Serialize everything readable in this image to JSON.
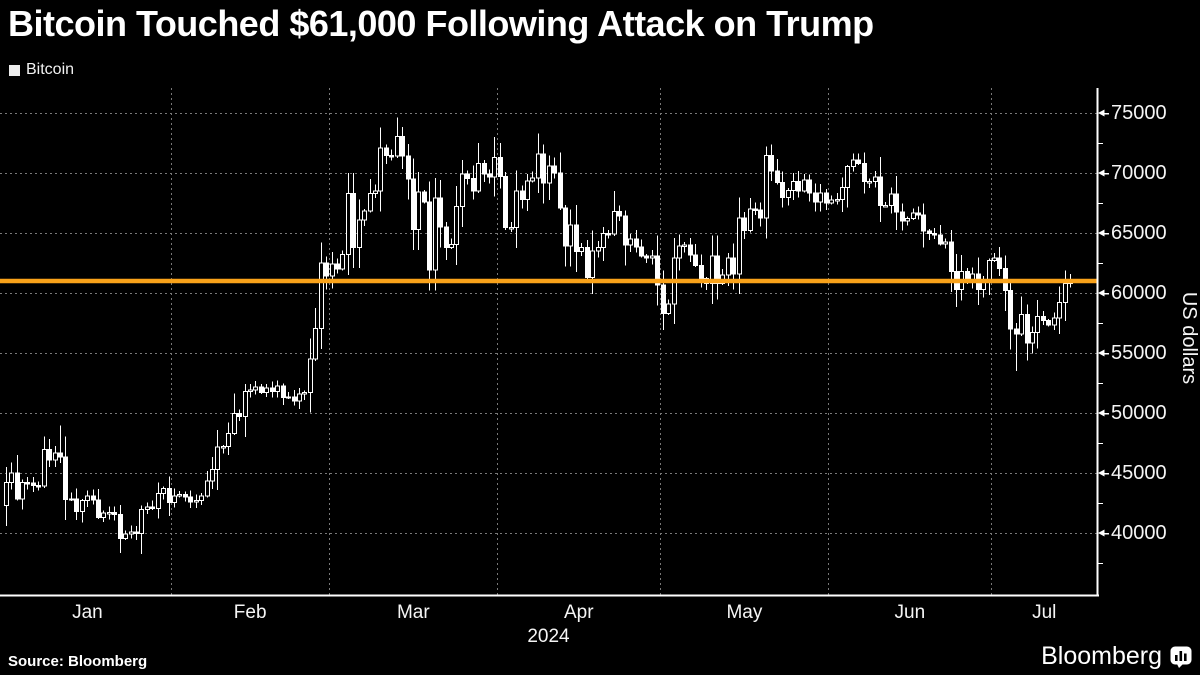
{
  "title": "Bitcoin Touched $61,000 Following Attack on Trump",
  "legend": {
    "label": "Bitcoin",
    "swatch_color": "#ececec"
  },
  "source": {
    "text": "Source: Bloomberg"
  },
  "branding": {
    "wordmark": "Bloomberg",
    "icon": "bar-chart-logo-icon"
  },
  "colors": {
    "background": "#000000",
    "text": "#ffffff",
    "grid": "#787878",
    "axis": "#ffffff",
    "candle": "#ffffff",
    "reference_line": "#f9a21a"
  },
  "chart_data": {
    "type": "candlestick",
    "title": "Bitcoin Touched $61,000 Following Attack on Trump",
    "ylabel": "US dollars",
    "y_axis": {
      "side": "right",
      "tick_values": [
        40000,
        45000,
        50000,
        55000,
        60000,
        65000,
        70000,
        75000
      ],
      "minor_tick_values": [
        37500,
        42500,
        47500,
        52500,
        57500,
        62500,
        67500,
        72500
      ],
      "range_approx": [
        34800,
        77100
      ]
    },
    "x_axis": {
      "year_label": "2024",
      "months": [
        {
          "label": "Jan",
          "days": 31
        },
        {
          "label": "Feb",
          "days": 29
        },
        {
          "label": "Mar",
          "days": 31
        },
        {
          "label": "Apr",
          "days": 30
        },
        {
          "label": "May",
          "days": 31
        },
        {
          "label": "Jun",
          "days": 30
        },
        {
          "label": "Jul",
          "days": 15
        }
      ]
    },
    "reference_line": {
      "value": 61000,
      "color": "#f9a21a"
    },
    "grid": {
      "style": "dashed",
      "horizontal": "at each major y tick",
      "vertical": "at month starts"
    },
    "series": [
      {
        "name": "Bitcoin",
        "unit": "USD",
        "frequency": "daily",
        "start_date": "2024-01-01",
        "end_date": "2024-07-15",
        "first_open": 42300,
        "closes": [
          44200,
          45000,
          42850,
          44200,
          44150,
          43950,
          43900,
          46950,
          46100,
          46650,
          46350,
          42800,
          42850,
          41800,
          42700,
          43100,
          42750,
          41300,
          41650,
          41700,
          41550,
          39550,
          39900,
          40100,
          39950,
          41950,
          42150,
          42050,
          43300,
          43700,
          42550,
          43100,
          43200,
          43000,
          42600,
          42700,
          43100,
          44350,
          45300,
          47150,
          47200,
          48300,
          49950,
          49700,
          51800,
          51900,
          52150,
          51700,
          52100,
          51800,
          52250,
          51300,
          51350,
          51000,
          51600,
          51700,
          54500,
          57050,
          62500,
          61400,
          62400,
          62000,
          63200,
          68300,
          63800,
          66100,
          66850,
          68300,
          68500,
          72100,
          71450,
          71400,
          73050,
          71400,
          69500,
          65300,
          68400,
          67600,
          61900,
          67900,
          65500,
          63800,
          64050,
          67200,
          69900,
          69550,
          68500,
          70800,
          69900,
          69650,
          71300,
          69700,
          65450,
          65450,
          68500,
          67800,
          69350,
          69600,
          71600,
          69150,
          70600,
          70000,
          67100,
          63900,
          65650,
          63450,
          63800,
          61300,
          63500,
          63800,
          64950,
          64900,
          66800,
          66400,
          64000,
          64500,
          63850,
          63100,
          62900,
          63100,
          60650,
          58300,
          59100,
          62900,
          63900,
          64000,
          63150,
          62300,
          61200,
          60800,
          63100,
          60800,
          61500,
          62900,
          61600,
          66250,
          65200,
          67000,
          66900,
          66250,
          71450,
          70150,
          69200,
          67950,
          68550,
          69300,
          68500,
          69400,
          68350,
          67600,
          68350,
          67500,
          67750,
          67800,
          68800,
          70550,
          71100,
          70800,
          69300,
          69300,
          69650,
          67300,
          67300,
          68250,
          66750,
          66000,
          66200,
          66650,
          66500,
          65150,
          64950,
          64850,
          64100,
          64250,
          61800,
          60300,
          61800,
          60900,
          61600,
          60300,
          60900,
          62700,
          62900,
          62050,
          60200,
          57000,
          56600,
          58200,
          55850,
          56700,
          58050,
          57700,
          57350,
          57900,
          59200,
          60800,
          60950
        ],
        "wick_overrides": {
          "high": {
            "10": 48950,
            "73": 73850,
            "196": 61600
          },
          "low": {
            "186": 53520
          }
        },
        "candle_style": {
          "up": "hollow",
          "down": "solid",
          "color": "#ffffff"
        }
      }
    ]
  }
}
